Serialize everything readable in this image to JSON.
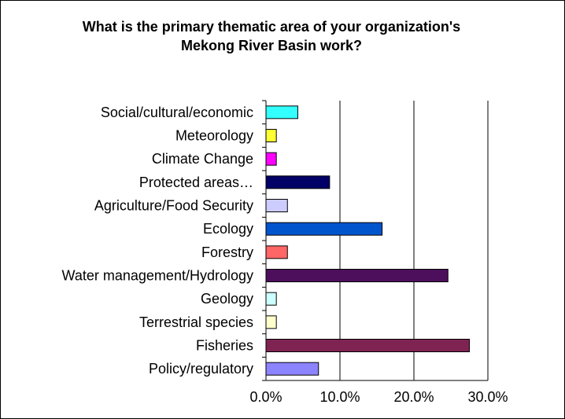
{
  "chart_data": {
    "type": "bar",
    "orientation": "horizontal",
    "title_line1": "What is the primary thematic area of your organization's",
    "title_line2": "Mekong River Basin work?",
    "xlabel": "",
    "ylabel": "",
    "xlim": [
      0,
      30
    ],
    "grid": true,
    "legend": "none",
    "xticks": [
      "0.0%",
      "10.0%",
      "20.0%",
      "30.0%"
    ],
    "categories": [
      "Social/cultural/economic",
      "Meteorology",
      "Climate Change",
      "Protected areas…",
      "Agriculture/Food Security",
      "Ecology",
      "Forestry",
      "Water management/Hydrology",
      "Geology",
      "Terrestrial species",
      "Fisheries",
      "Policy/regulatory"
    ],
    "values": [
      4.3,
      1.4,
      1.4,
      8.6,
      2.9,
      15.7,
      2.9,
      24.6,
      1.4,
      1.4,
      27.5,
      7.1
    ],
    "colors": [
      "#33FFFF",
      "#FFFF33",
      "#FF00FF",
      "#000066",
      "#CCCCFF",
      "#0055CC",
      "#FF6666",
      "#4D0F5C",
      "#CCFFFF",
      "#FFFFCC",
      "#7F2352",
      "#8C84FF"
    ]
  }
}
